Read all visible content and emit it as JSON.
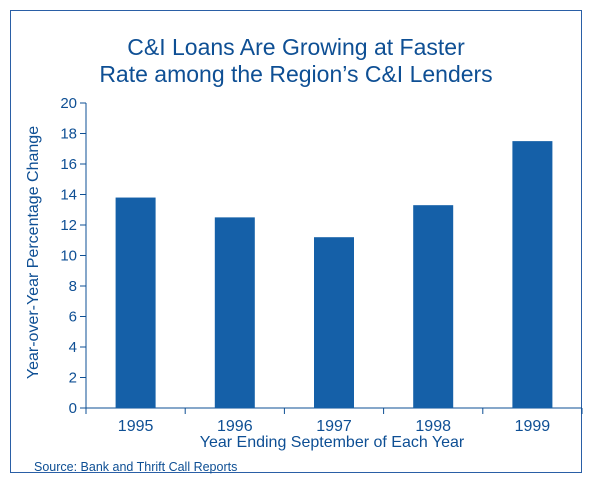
{
  "chart_data": {
    "type": "bar",
    "title_lines": [
      "C&I Loans Are Growing at Faster",
      "Rate among the Region’s C&I Lenders"
    ],
    "categories": [
      "1995",
      "1996",
      "1997",
      "1998",
      "1999"
    ],
    "values": [
      13.8,
      12.5,
      11.2,
      13.3,
      17.5
    ],
    "xlabel": "Year Ending September of Each Year",
    "ylabel": "Year-over-Year Percentage Change",
    "ylim": [
      0,
      20
    ],
    "yticks": [
      "0",
      "2",
      "4",
      "6",
      "8",
      "10",
      "12",
      "14",
      "16",
      "18",
      "20"
    ],
    "grid": false,
    "bar_color": "#1560a8",
    "text_color": "#0e4f94"
  },
  "source": "Source: Bank and Thrift Call Reports"
}
